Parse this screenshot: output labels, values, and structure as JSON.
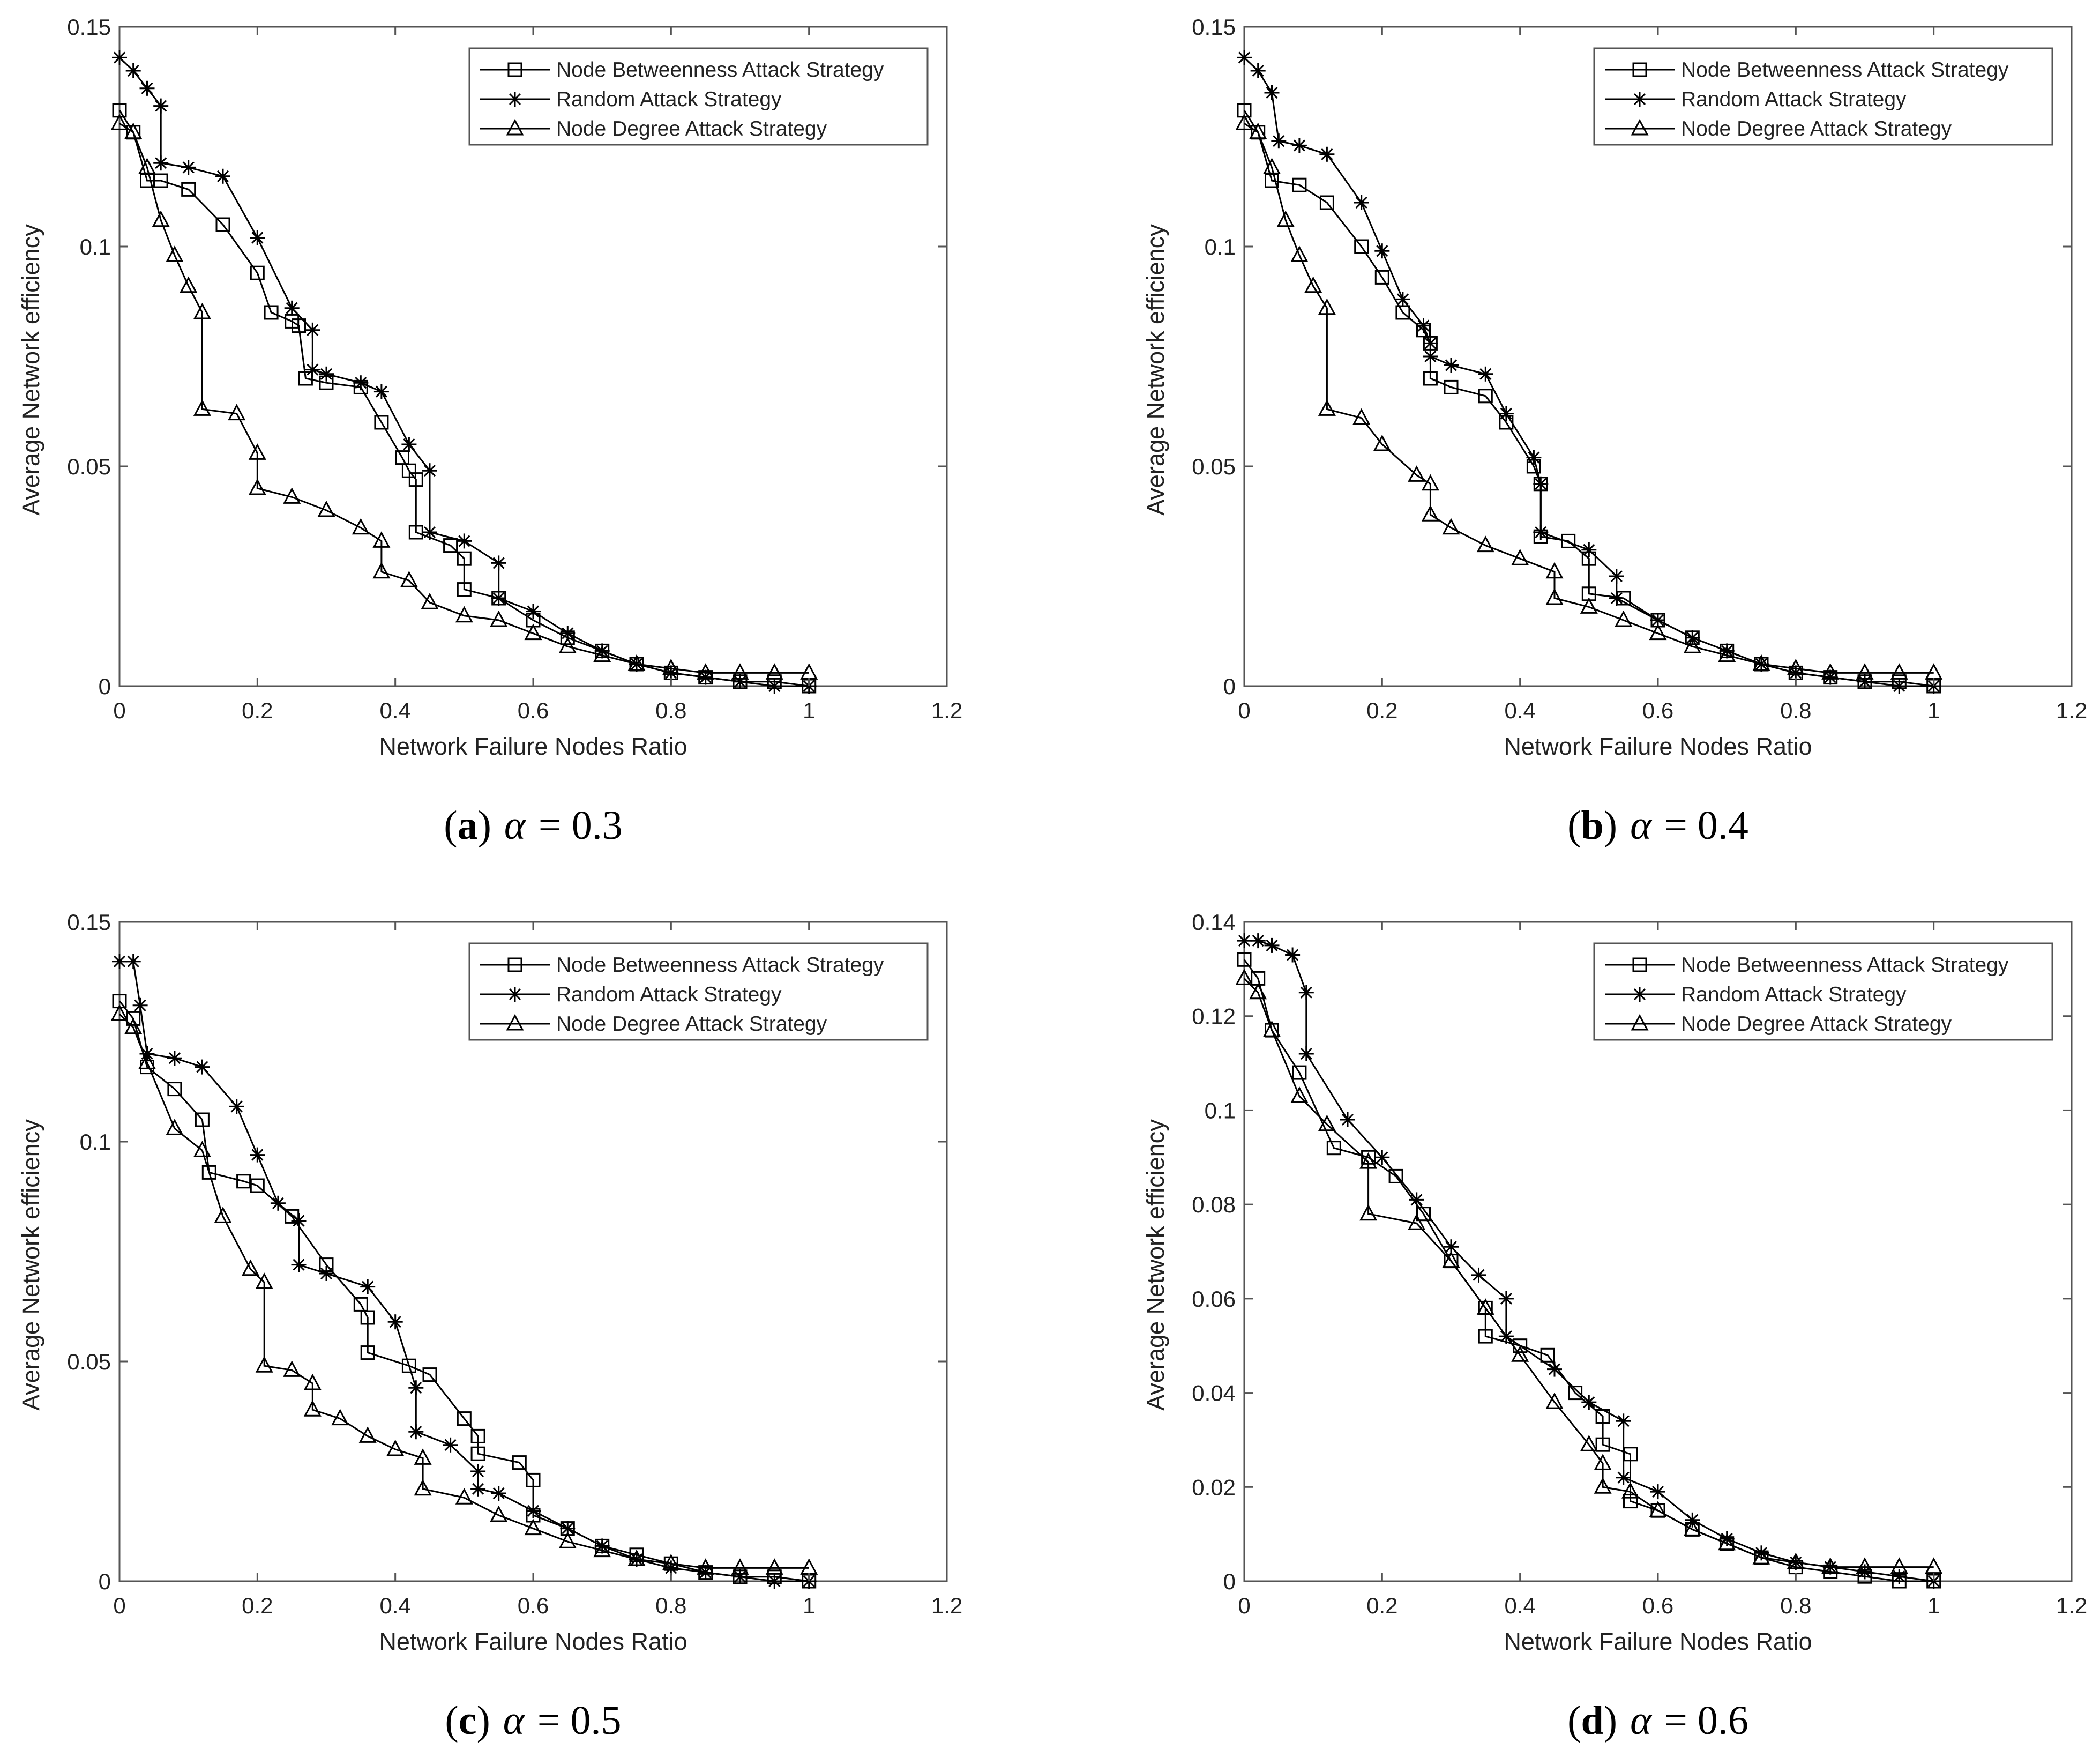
{
  "figure": {
    "axis_xlabel": "Network Failure Nodes Ratio",
    "axis_ylabel": "Average Network efficiency",
    "legend": [
      "Node Betweenness Attack Strategy",
      "Random Attack Strategy",
      "Node Degree Attack Strategy"
    ],
    "colors": {
      "line": "#000000",
      "axes": "#555555",
      "text": "#222222"
    }
  },
  "chart_data": [
    {
      "type": "line",
      "caption": {
        "paren_open": "(",
        "label": "a",
        "paren_close": ")",
        "symbol": "α",
        "equation": "= 0.3"
      },
      "xlim": [
        0,
        1.2
      ],
      "ylim": [
        0,
        0.15
      ],
      "xticks": [
        0,
        0.2,
        0.4,
        0.6,
        0.8,
        1,
        1.2
      ],
      "xtick_labels": [
        "0",
        "0.2",
        "0.4",
        "0.6",
        "0.8",
        "1",
        "1.2"
      ],
      "yticks": [
        0,
        0.05,
        0.1,
        0.15
      ],
      "ytick_labels": [
        "0",
        "0.05",
        "0.1",
        "0.15"
      ],
      "xlabel": "Network Failure Nodes Ratio",
      "ylabel": "Average Network efficiency",
      "legend_position": "top-right",
      "series": [
        {
          "name": "Node Betweenness Attack Strategy",
          "marker": "square",
          "x": [
            0,
            0.02,
            0.04,
            0.06,
            0.06,
            0.1,
            0.15,
            0.2,
            0.22,
            0.25,
            0.26,
            0.27,
            0.3,
            0.35,
            0.38,
            0.41,
            0.42,
            0.43,
            0.43,
            0.48,
            0.5,
            0.5,
            0.55,
            0.6,
            0.65,
            0.7,
            0.75,
            0.8,
            0.85,
            0.9,
            0.95,
            1.0
          ],
          "y": [
            0.131,
            0.126,
            0.115,
            0.115,
            0.115,
            0.113,
            0.105,
            0.094,
            0.085,
            0.083,
            0.082,
            0.07,
            0.069,
            0.068,
            0.06,
            0.052,
            0.049,
            0.047,
            0.035,
            0.032,
            0.029,
            0.022,
            0.02,
            0.015,
            0.011,
            0.008,
            0.005,
            0.003,
            0.002,
            0.001,
            0.001,
            0.0
          ]
        },
        {
          "name": "Random Attack Strategy",
          "marker": "star",
          "x": [
            0,
            0.02,
            0.04,
            0.06,
            0.06,
            0.1,
            0.15,
            0.2,
            0.25,
            0.28,
            0.28,
            0.3,
            0.35,
            0.38,
            0.42,
            0.45,
            0.45,
            0.5,
            0.55,
            0.55,
            0.6,
            0.65,
            0.7,
            0.75,
            0.8,
            0.85,
            0.9,
            0.95,
            1.0
          ],
          "y": [
            0.143,
            0.14,
            0.136,
            0.132,
            0.119,
            0.118,
            0.116,
            0.102,
            0.086,
            0.081,
            0.072,
            0.071,
            0.069,
            0.067,
            0.055,
            0.049,
            0.035,
            0.033,
            0.028,
            0.02,
            0.017,
            0.012,
            0.008,
            0.005,
            0.003,
            0.002,
            0.001,
            0.0,
            0.0
          ]
        },
        {
          "name": "Node Degree Attack Strategy",
          "marker": "triangle",
          "x": [
            0,
            0.02,
            0.04,
            0.06,
            0.08,
            0.1,
            0.12,
            0.12,
            0.17,
            0.2,
            0.2,
            0.25,
            0.3,
            0.35,
            0.38,
            0.38,
            0.42,
            0.45,
            0.5,
            0.55,
            0.6,
            0.65,
            0.7,
            0.75,
            0.8,
            0.85,
            0.9,
            0.95,
            1.0
          ],
          "y": [
            0.128,
            0.126,
            0.118,
            0.106,
            0.098,
            0.091,
            0.085,
            0.063,
            0.062,
            0.053,
            0.045,
            0.043,
            0.04,
            0.036,
            0.033,
            0.026,
            0.024,
            0.019,
            0.016,
            0.015,
            0.012,
            0.009,
            0.007,
            0.005,
            0.004,
            0.003,
            0.003,
            0.003,
            0.003
          ]
        }
      ]
    },
    {
      "type": "line",
      "caption": {
        "paren_open": "(",
        "label": "b",
        "paren_close": ")",
        "symbol": "α",
        "equation": "= 0.4"
      },
      "xlim": [
        0,
        1.2
      ],
      "ylim": [
        0,
        0.15
      ],
      "xticks": [
        0,
        0.2,
        0.4,
        0.6,
        0.8,
        1,
        1.2
      ],
      "xtick_labels": [
        "0",
        "0.2",
        "0.4",
        "0.6",
        "0.8",
        "1",
        "1.2"
      ],
      "yticks": [
        0,
        0.05,
        0.1,
        0.15
      ],
      "ytick_labels": [
        "0",
        "0.05",
        "0.1",
        "0.15"
      ],
      "xlabel": "Network Failure Nodes Ratio",
      "ylabel": "Average Network efficiency",
      "legend_position": "top-right",
      "series": [
        {
          "name": "Node Betweenness Attack Strategy",
          "marker": "square",
          "x": [
            0,
            0.02,
            0.04,
            0.08,
            0.12,
            0.17,
            0.2,
            0.23,
            0.26,
            0.27,
            0.27,
            0.3,
            0.35,
            0.38,
            0.42,
            0.43,
            0.43,
            0.47,
            0.5,
            0.5,
            0.55,
            0.6,
            0.65,
            0.7,
            0.75,
            0.8,
            0.85,
            0.9,
            0.95,
            1.0
          ],
          "y": [
            0.131,
            0.126,
            0.115,
            0.114,
            0.11,
            0.1,
            0.093,
            0.085,
            0.081,
            0.078,
            0.07,
            0.068,
            0.066,
            0.06,
            0.05,
            0.046,
            0.034,
            0.033,
            0.029,
            0.021,
            0.02,
            0.015,
            0.011,
            0.008,
            0.005,
            0.003,
            0.002,
            0.001,
            0.001,
            0.0
          ]
        },
        {
          "name": "Random Attack Strategy",
          "marker": "star",
          "x": [
            0,
            0.02,
            0.04,
            0.05,
            0.08,
            0.12,
            0.17,
            0.2,
            0.23,
            0.26,
            0.27,
            0.27,
            0.3,
            0.35,
            0.38,
            0.42,
            0.43,
            0.43,
            0.5,
            0.54,
            0.54,
            0.6,
            0.65,
            0.7,
            0.75,
            0.8,
            0.85,
            0.9,
            0.95,
            1.0
          ],
          "y": [
            0.143,
            0.14,
            0.135,
            0.124,
            0.123,
            0.121,
            0.11,
            0.099,
            0.088,
            0.082,
            0.078,
            0.075,
            0.073,
            0.071,
            0.062,
            0.052,
            0.046,
            0.035,
            0.031,
            0.025,
            0.02,
            0.015,
            0.011,
            0.008,
            0.005,
            0.003,
            0.002,
            0.001,
            0.0,
            0.0
          ]
        },
        {
          "name": "Node Degree Attack Strategy",
          "marker": "triangle",
          "x": [
            0,
            0.02,
            0.04,
            0.06,
            0.08,
            0.1,
            0.12,
            0.12,
            0.17,
            0.2,
            0.25,
            0.27,
            0.27,
            0.3,
            0.35,
            0.4,
            0.45,
            0.45,
            0.5,
            0.55,
            0.6,
            0.65,
            0.7,
            0.75,
            0.8,
            0.85,
            0.9,
            0.95,
            1.0
          ],
          "y": [
            0.128,
            0.126,
            0.118,
            0.106,
            0.098,
            0.091,
            0.086,
            0.063,
            0.061,
            0.055,
            0.048,
            0.046,
            0.039,
            0.036,
            0.032,
            0.029,
            0.026,
            0.02,
            0.018,
            0.015,
            0.012,
            0.009,
            0.007,
            0.005,
            0.004,
            0.003,
            0.003,
            0.003,
            0.003
          ]
        }
      ]
    },
    {
      "type": "line",
      "caption": {
        "paren_open": "(",
        "label": "c",
        "paren_close": ")",
        "symbol": "α",
        "equation": "= 0.5"
      },
      "xlim": [
        0,
        1.2
      ],
      "ylim": [
        0,
        0.15
      ],
      "xticks": [
        0,
        0.2,
        0.4,
        0.6,
        0.8,
        1,
        1.2
      ],
      "xtick_labels": [
        "0",
        "0.2",
        "0.4",
        "0.6",
        "0.8",
        "1",
        "1.2"
      ],
      "yticks": [
        0,
        0.05,
        0.1,
        0.15
      ],
      "ytick_labels": [
        "0",
        "0.05",
        "0.1",
        "0.15"
      ],
      "xlabel": "Network Failure Nodes Ratio",
      "ylabel": "Average Network efficiency",
      "legend_position": "top-right",
      "series": [
        {
          "name": "Node Betweenness Attack Strategy",
          "marker": "square",
          "x": [
            0,
            0.02,
            0.04,
            0.08,
            0.12,
            0.13,
            0.18,
            0.2,
            0.25,
            0.3,
            0.35,
            0.36,
            0.36,
            0.42,
            0.45,
            0.5,
            0.52,
            0.52,
            0.58,
            0.6,
            0.6,
            0.65,
            0.7,
            0.75,
            0.8,
            0.85,
            0.9,
            0.95,
            1.0
          ],
          "y": [
            0.132,
            0.128,
            0.117,
            0.112,
            0.105,
            0.093,
            0.091,
            0.09,
            0.083,
            0.072,
            0.063,
            0.06,
            0.052,
            0.049,
            0.047,
            0.037,
            0.033,
            0.029,
            0.027,
            0.023,
            0.015,
            0.012,
            0.008,
            0.006,
            0.004,
            0.002,
            0.001,
            0.001,
            0.0
          ]
        },
        {
          "name": "Random Attack Strategy",
          "marker": "star",
          "x": [
            0,
            0.02,
            0.03,
            0.04,
            0.08,
            0.12,
            0.17,
            0.2,
            0.23,
            0.26,
            0.26,
            0.3,
            0.36,
            0.4,
            0.43,
            0.43,
            0.48,
            0.52,
            0.52,
            0.55,
            0.6,
            0.65,
            0.7,
            0.75,
            0.8,
            0.85,
            0.9,
            0.95,
            1.0
          ],
          "y": [
            0.141,
            0.141,
            0.131,
            0.12,
            0.119,
            0.117,
            0.108,
            0.097,
            0.086,
            0.082,
            0.072,
            0.07,
            0.067,
            0.059,
            0.044,
            0.034,
            0.031,
            0.025,
            0.021,
            0.02,
            0.016,
            0.012,
            0.008,
            0.005,
            0.003,
            0.002,
            0.001,
            0.0,
            0.0
          ]
        },
        {
          "name": "Node Degree Attack Strategy",
          "marker": "triangle",
          "x": [
            0,
            0.02,
            0.04,
            0.08,
            0.12,
            0.15,
            0.19,
            0.21,
            0.21,
            0.25,
            0.28,
            0.28,
            0.32,
            0.36,
            0.4,
            0.44,
            0.44,
            0.5,
            0.55,
            0.6,
            0.65,
            0.7,
            0.75,
            0.8,
            0.85,
            0.9,
            0.95,
            1.0
          ],
          "y": [
            0.129,
            0.126,
            0.118,
            0.103,
            0.098,
            0.083,
            0.071,
            0.068,
            0.049,
            0.048,
            0.045,
            0.039,
            0.037,
            0.033,
            0.03,
            0.028,
            0.021,
            0.019,
            0.015,
            0.012,
            0.009,
            0.007,
            0.005,
            0.004,
            0.003,
            0.003,
            0.003,
            0.003
          ]
        }
      ]
    },
    {
      "type": "line",
      "caption": {
        "paren_open": "(",
        "label": "d",
        "paren_close": ")",
        "symbol": "α",
        "equation": "= 0.6"
      },
      "xlim": [
        0,
        1.2
      ],
      "ylim": [
        0,
        0.14
      ],
      "xticks": [
        0,
        0.2,
        0.4,
        0.6,
        0.8,
        1,
        1.2
      ],
      "xtick_labels": [
        "0",
        "0.2",
        "0.4",
        "0.6",
        "0.8",
        "1",
        "1.2"
      ],
      "yticks": [
        0,
        0.02,
        0.04,
        0.06,
        0.08,
        0.1,
        0.12,
        0.14
      ],
      "ytick_labels": [
        "0",
        "0.02",
        "0.04",
        "0.06",
        "0.08",
        "0.1",
        "0.12",
        "0.14"
      ],
      "xlabel": "Network Failure Nodes Ratio",
      "ylabel": "Average Network efficiency",
      "legend_position": "top-right",
      "series": [
        {
          "name": "Node Betweenness Attack Strategy",
          "marker": "square",
          "x": [
            0,
            0.02,
            0.04,
            0.08,
            0.13,
            0.18,
            0.22,
            0.26,
            0.3,
            0.35,
            0.35,
            0.4,
            0.44,
            0.48,
            0.52,
            0.52,
            0.56,
            0.56,
            0.6,
            0.65,
            0.7,
            0.75,
            0.8,
            0.85,
            0.9,
            0.95,
            1.0
          ],
          "y": [
            0.132,
            0.128,
            0.117,
            0.108,
            0.092,
            0.09,
            0.086,
            0.078,
            0.068,
            0.058,
            0.052,
            0.05,
            0.048,
            0.04,
            0.035,
            0.029,
            0.027,
            0.017,
            0.015,
            0.011,
            0.008,
            0.005,
            0.003,
            0.002,
            0.001,
            0.0,
            0.0
          ]
        },
        {
          "name": "Random Attack Strategy",
          "marker": "star",
          "x": [
            0,
            0.02,
            0.04,
            0.07,
            0.09,
            0.09,
            0.15,
            0.2,
            0.25,
            0.3,
            0.34,
            0.38,
            0.38,
            0.45,
            0.5,
            0.55,
            0.55,
            0.6,
            0.65,
            0.7,
            0.75,
            0.8,
            0.85,
            0.9,
            0.95,
            1.0
          ],
          "y": [
            0.136,
            0.136,
            0.135,
            0.133,
            0.125,
            0.112,
            0.098,
            0.09,
            0.081,
            0.071,
            0.065,
            0.06,
            0.052,
            0.045,
            0.038,
            0.034,
            0.022,
            0.019,
            0.013,
            0.009,
            0.006,
            0.004,
            0.003,
            0.002,
            0.001,
            0.0
          ]
        },
        {
          "name": "Node Degree Attack Strategy",
          "marker": "triangle",
          "x": [
            0,
            0.02,
            0.04,
            0.08,
            0.12,
            0.18,
            0.18,
            0.25,
            0.3,
            0.35,
            0.4,
            0.45,
            0.5,
            0.52,
            0.52,
            0.56,
            0.6,
            0.65,
            0.7,
            0.75,
            0.8,
            0.85,
            0.9,
            0.95,
            1.0
          ],
          "y": [
            0.128,
            0.125,
            0.117,
            0.103,
            0.097,
            0.089,
            0.078,
            0.076,
            0.068,
            0.058,
            0.048,
            0.038,
            0.029,
            0.025,
            0.02,
            0.019,
            0.015,
            0.011,
            0.008,
            0.005,
            0.004,
            0.003,
            0.003,
            0.003,
            0.003
          ]
        }
      ]
    }
  ]
}
